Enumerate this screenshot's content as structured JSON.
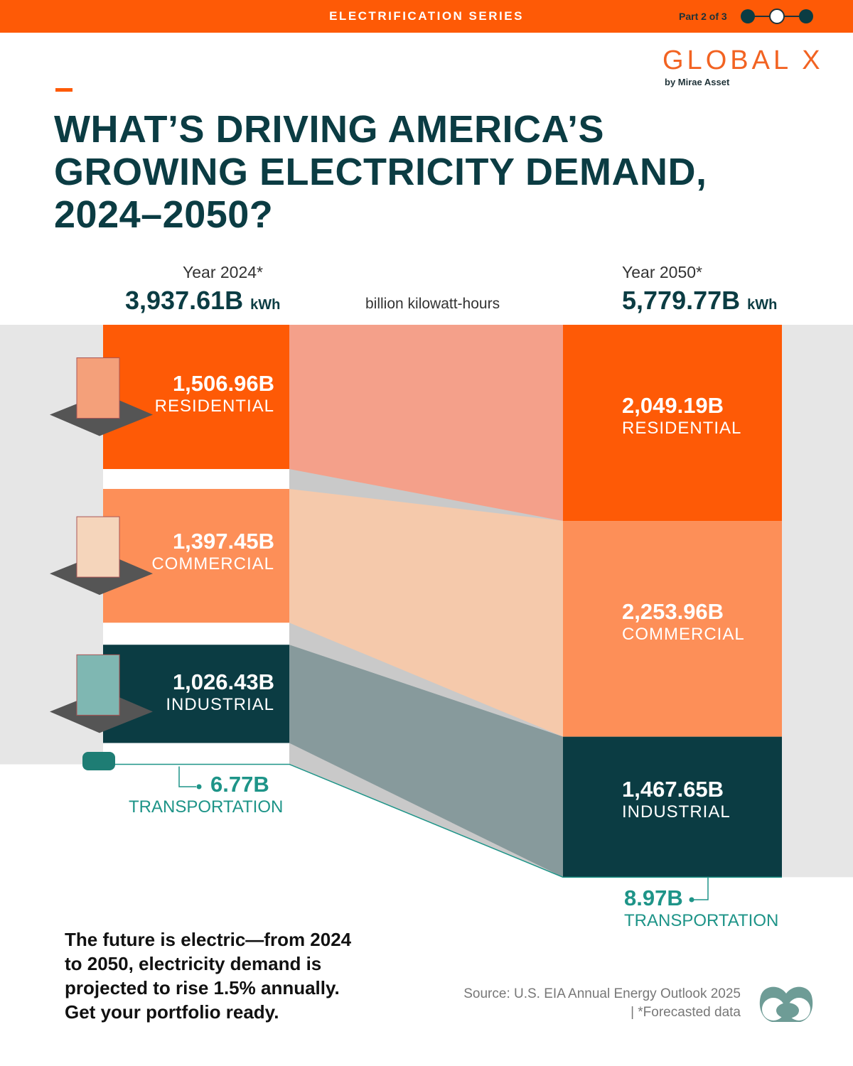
{
  "header": {
    "series": "ELECTRIFICATION SERIES",
    "part": "Part 2 of 3",
    "current_step": 2,
    "total_steps": 3
  },
  "logo": {
    "name": "GLOBAL X",
    "sub": "by Mirae Asset"
  },
  "title": "WHAT’S DRIVING AMERICA’S GROWING ELECTRICITY DEMAND, 2024–2050?",
  "chart_data": {
    "type": "sankey",
    "unit_label": "billion kilowatt-hours",
    "left": {
      "year": "Year 2024*",
      "total": "3,937.61B",
      "total_unit": "kWh"
    },
    "right": {
      "year": "Year 2050*",
      "total": "5,779.77B",
      "total_unit": "kWh"
    },
    "categories": [
      "RESIDENTIAL",
      "COMMERCIAL",
      "INDUSTRIAL",
      "TRANSPORTATION"
    ],
    "values_2024": [
      1506.96,
      1397.45,
      1026.43,
      6.77
    ],
    "values_2050": [
      2049.19,
      2253.96,
      1467.65,
      8.97
    ],
    "labels_2024": [
      "1,506.96B",
      "1,397.45B",
      "1,026.43B",
      "6.77B"
    ],
    "labels_2050": [
      "2,049.19B",
      "2,253.96B",
      "1,467.65B",
      "8.97B"
    ],
    "colors_2024": [
      "#fe5a06",
      "#fd8f58",
      "#0b3c43",
      "#1e9488"
    ],
    "colors_2050": [
      "#fe5a06",
      "#fd8f58",
      "#0b3c43",
      "#1e9488"
    ],
    "flow_colors": [
      "#f4a08a",
      "#f5c9ab",
      "#879a9c"
    ]
  },
  "footer": {
    "text": "The future is electric—from 2024 to 2050, electricity demand is projected to rise 1.5% annually. Get your portfolio ready.",
    "source": "Source: U.S. EIA Annual Energy Outlook 2025",
    "note": "| *Forecasted data"
  }
}
